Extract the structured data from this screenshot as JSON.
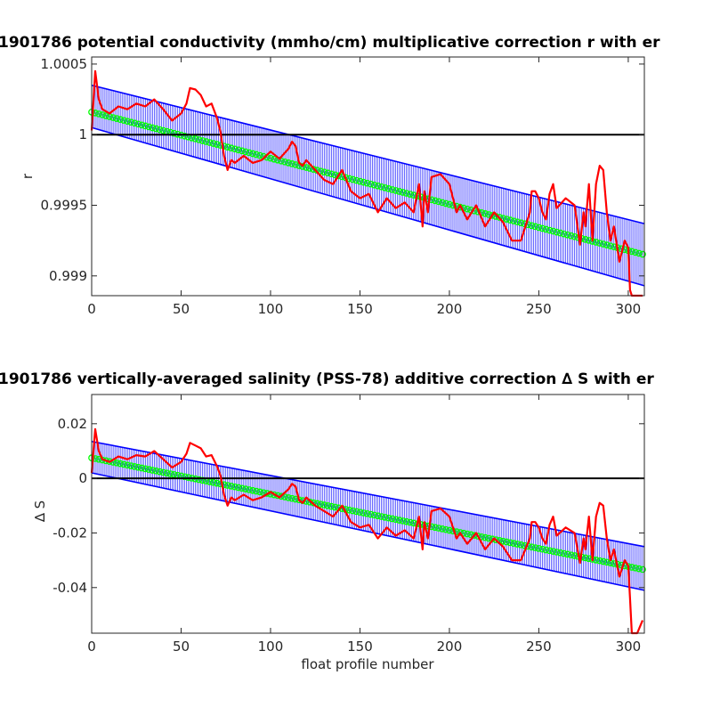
{
  "chart_data": [
    {
      "type": "line",
      "title": "1901786 potential conductivity (mmho/cm) multiplicative correction r with er",
      "xlabel": "",
      "ylabel": "r",
      "xlim": [
        0,
        309
      ],
      "ylim": [
        0.99886,
        1.00055
      ],
      "xticks": [
        0,
        50,
        100,
        150,
        200,
        250,
        300
      ],
      "yticks": [
        0.999,
        0.9995,
        1,
        1.0005
      ],
      "xtick_labels": [
        "0",
        "50",
        "100",
        "150",
        "200",
        "250",
        "300"
      ],
      "ytick_labels": [
        "0.999",
        "0.9995",
        "1",
        "1.0005"
      ],
      "reference_line": 1,
      "fit": {
        "x": [
          0,
          309
        ],
        "center": [
          1.00016,
          0.99915
        ],
        "upper": [
          1.00035,
          0.99937
        ],
        "lower": [
          1.00005,
          0.99893
        ]
      },
      "series_colors": {
        "data": "#ff0000",
        "fit": "#00ff00",
        "error_bars": "#0000ff",
        "reference": "#000000"
      },
      "series": [
        {
          "role": "raw_correction",
          "x": [
            0,
            2,
            4,
            6,
            10,
            15,
            20,
            25,
            30,
            35,
            40,
            45,
            50,
            53,
            55,
            58,
            61,
            64,
            67,
            70,
            72,
            74,
            76,
            78,
            80,
            85,
            90,
            95,
            100,
            105,
            110,
            112,
            114,
            116,
            118,
            120,
            125,
            130,
            135,
            140,
            145,
            150,
            155,
            160,
            165,
            170,
            175,
            180,
            183,
            185,
            186,
            188,
            190,
            195,
            200,
            202,
            204,
            206,
            210,
            215,
            220,
            225,
            230,
            235,
            240,
            245,
            246,
            248,
            250,
            252,
            254,
            256,
            258,
            260,
            265,
            270,
            273,
            275,
            276,
            278,
            280,
            282,
            284,
            286,
            288,
            290,
            292,
            295,
            298,
            300,
            301,
            302,
            305,
            308
          ],
          "y": [
            1.00003,
            1.00045,
            1.00025,
            1.00018,
            1.00015,
            1.0002,
            1.00018,
            1.00022,
            1.0002,
            1.00025,
            1.00018,
            1.0001,
            1.00015,
            1.00022,
            1.00033,
            1.00032,
            1.00028,
            1.0002,
            1.00022,
            1.00012,
            1.00002,
            0.99985,
            0.99975,
            0.99982,
            0.9998,
            0.99985,
            0.9998,
            0.99982,
            0.99988,
            0.99983,
            0.9999,
            0.99995,
            0.99992,
            0.9998,
            0.99978,
            0.99982,
            0.99975,
            0.99968,
            0.99965,
            0.99975,
            0.9996,
            0.99955,
            0.99958,
            0.99945,
            0.99955,
            0.99948,
            0.99952,
            0.99945,
            0.99965,
            0.99935,
            0.9996,
            0.99945,
            0.9997,
            0.99972,
            0.99965,
            0.99955,
            0.99945,
            0.9995,
            0.9994,
            0.9995,
            0.99935,
            0.99945,
            0.99938,
            0.99925,
            0.99925,
            0.99945,
            0.9996,
            0.9996,
            0.99955,
            0.99945,
            0.9994,
            0.99958,
            0.99965,
            0.99948,
            0.99955,
            0.9995,
            0.99922,
            0.99945,
            0.99935,
            0.99965,
            0.99925,
            0.99965,
            0.99978,
            0.99975,
            0.99945,
            0.99925,
            0.99935,
            0.9991,
            0.99925,
            0.9992,
            0.9989,
            0.99875,
            0.99875,
            0.99885
          ]
        }
      ]
    },
    {
      "type": "line",
      "title": "1901786 vertically-averaged salinity (PSS-78) additive correction ∆ S with er",
      "xlabel": "float profile number",
      "ylabel": "∆ S",
      "xlim": [
        0,
        309
      ],
      "ylim": [
        -0.0567,
        0.0307
      ],
      "xticks": [
        0,
        50,
        100,
        150,
        200,
        250,
        300
      ],
      "yticks": [
        -0.04,
        -0.02,
        0,
        0.02
      ],
      "xtick_labels": [
        "0",
        "50",
        "100",
        "150",
        "200",
        "250",
        "300"
      ],
      "ytick_labels": [
        "-0.04",
        "-0.02",
        "0",
        "0.02"
      ],
      "reference_line": 0,
      "fit": {
        "x": [
          0,
          309
        ],
        "center": [
          0.0075,
          -0.0335
        ],
        "upper": [
          0.0135,
          -0.025
        ],
        "lower": [
          0.002,
          -0.041
        ]
      },
      "series_colors": {
        "data": "#ff0000",
        "fit": "#00ff00",
        "error_bars": "#0000ff",
        "reference": "#000000"
      },
      "series": [
        {
          "role": "raw_correction",
          "x": [
            0,
            2,
            4,
            6,
            10,
            15,
            20,
            25,
            30,
            35,
            40,
            45,
            50,
            53,
            55,
            58,
            61,
            64,
            67,
            70,
            72,
            74,
            76,
            78,
            80,
            85,
            90,
            95,
            100,
            105,
            110,
            112,
            114,
            116,
            118,
            120,
            125,
            130,
            135,
            140,
            145,
            150,
            155,
            160,
            165,
            170,
            175,
            180,
            183,
            185,
            186,
            188,
            190,
            195,
            200,
            202,
            204,
            206,
            210,
            215,
            220,
            225,
            230,
            235,
            240,
            245,
            246,
            248,
            250,
            252,
            254,
            256,
            258,
            260,
            265,
            270,
            273,
            275,
            276,
            278,
            280,
            282,
            284,
            286,
            288,
            290,
            292,
            295,
            298,
            300,
            301,
            302,
            305,
            308
          ],
          "y": [
            0.002,
            0.018,
            0.01,
            0.007,
            0.006,
            0.008,
            0.007,
            0.0085,
            0.008,
            0.01,
            0.007,
            0.004,
            0.006,
            0.009,
            0.013,
            0.012,
            0.011,
            0.008,
            0.0085,
            0.0045,
            0.001,
            -0.006,
            -0.01,
            -0.007,
            -0.008,
            -0.006,
            -0.008,
            -0.007,
            -0.005,
            -0.007,
            -0.004,
            -0.002,
            -0.003,
            -0.008,
            -0.009,
            -0.007,
            -0.01,
            -0.012,
            -0.014,
            -0.01,
            -0.016,
            -0.018,
            -0.017,
            -0.022,
            -0.018,
            -0.021,
            -0.019,
            -0.022,
            -0.014,
            -0.026,
            -0.016,
            -0.022,
            -0.012,
            -0.011,
            -0.014,
            -0.018,
            -0.022,
            -0.02,
            -0.024,
            -0.02,
            -0.026,
            -0.022,
            -0.025,
            -0.03,
            -0.03,
            -0.022,
            -0.016,
            -0.016,
            -0.018,
            -0.022,
            -0.024,
            -0.017,
            -0.014,
            -0.021,
            -0.018,
            -0.02,
            -0.031,
            -0.022,
            -0.026,
            -0.014,
            -0.03,
            -0.014,
            -0.009,
            -0.01,
            -0.022,
            -0.03,
            -0.026,
            -0.036,
            -0.03,
            -0.032,
            -0.044,
            -0.06,
            -0.06,
            -0.052
          ]
        }
      ]
    }
  ]
}
